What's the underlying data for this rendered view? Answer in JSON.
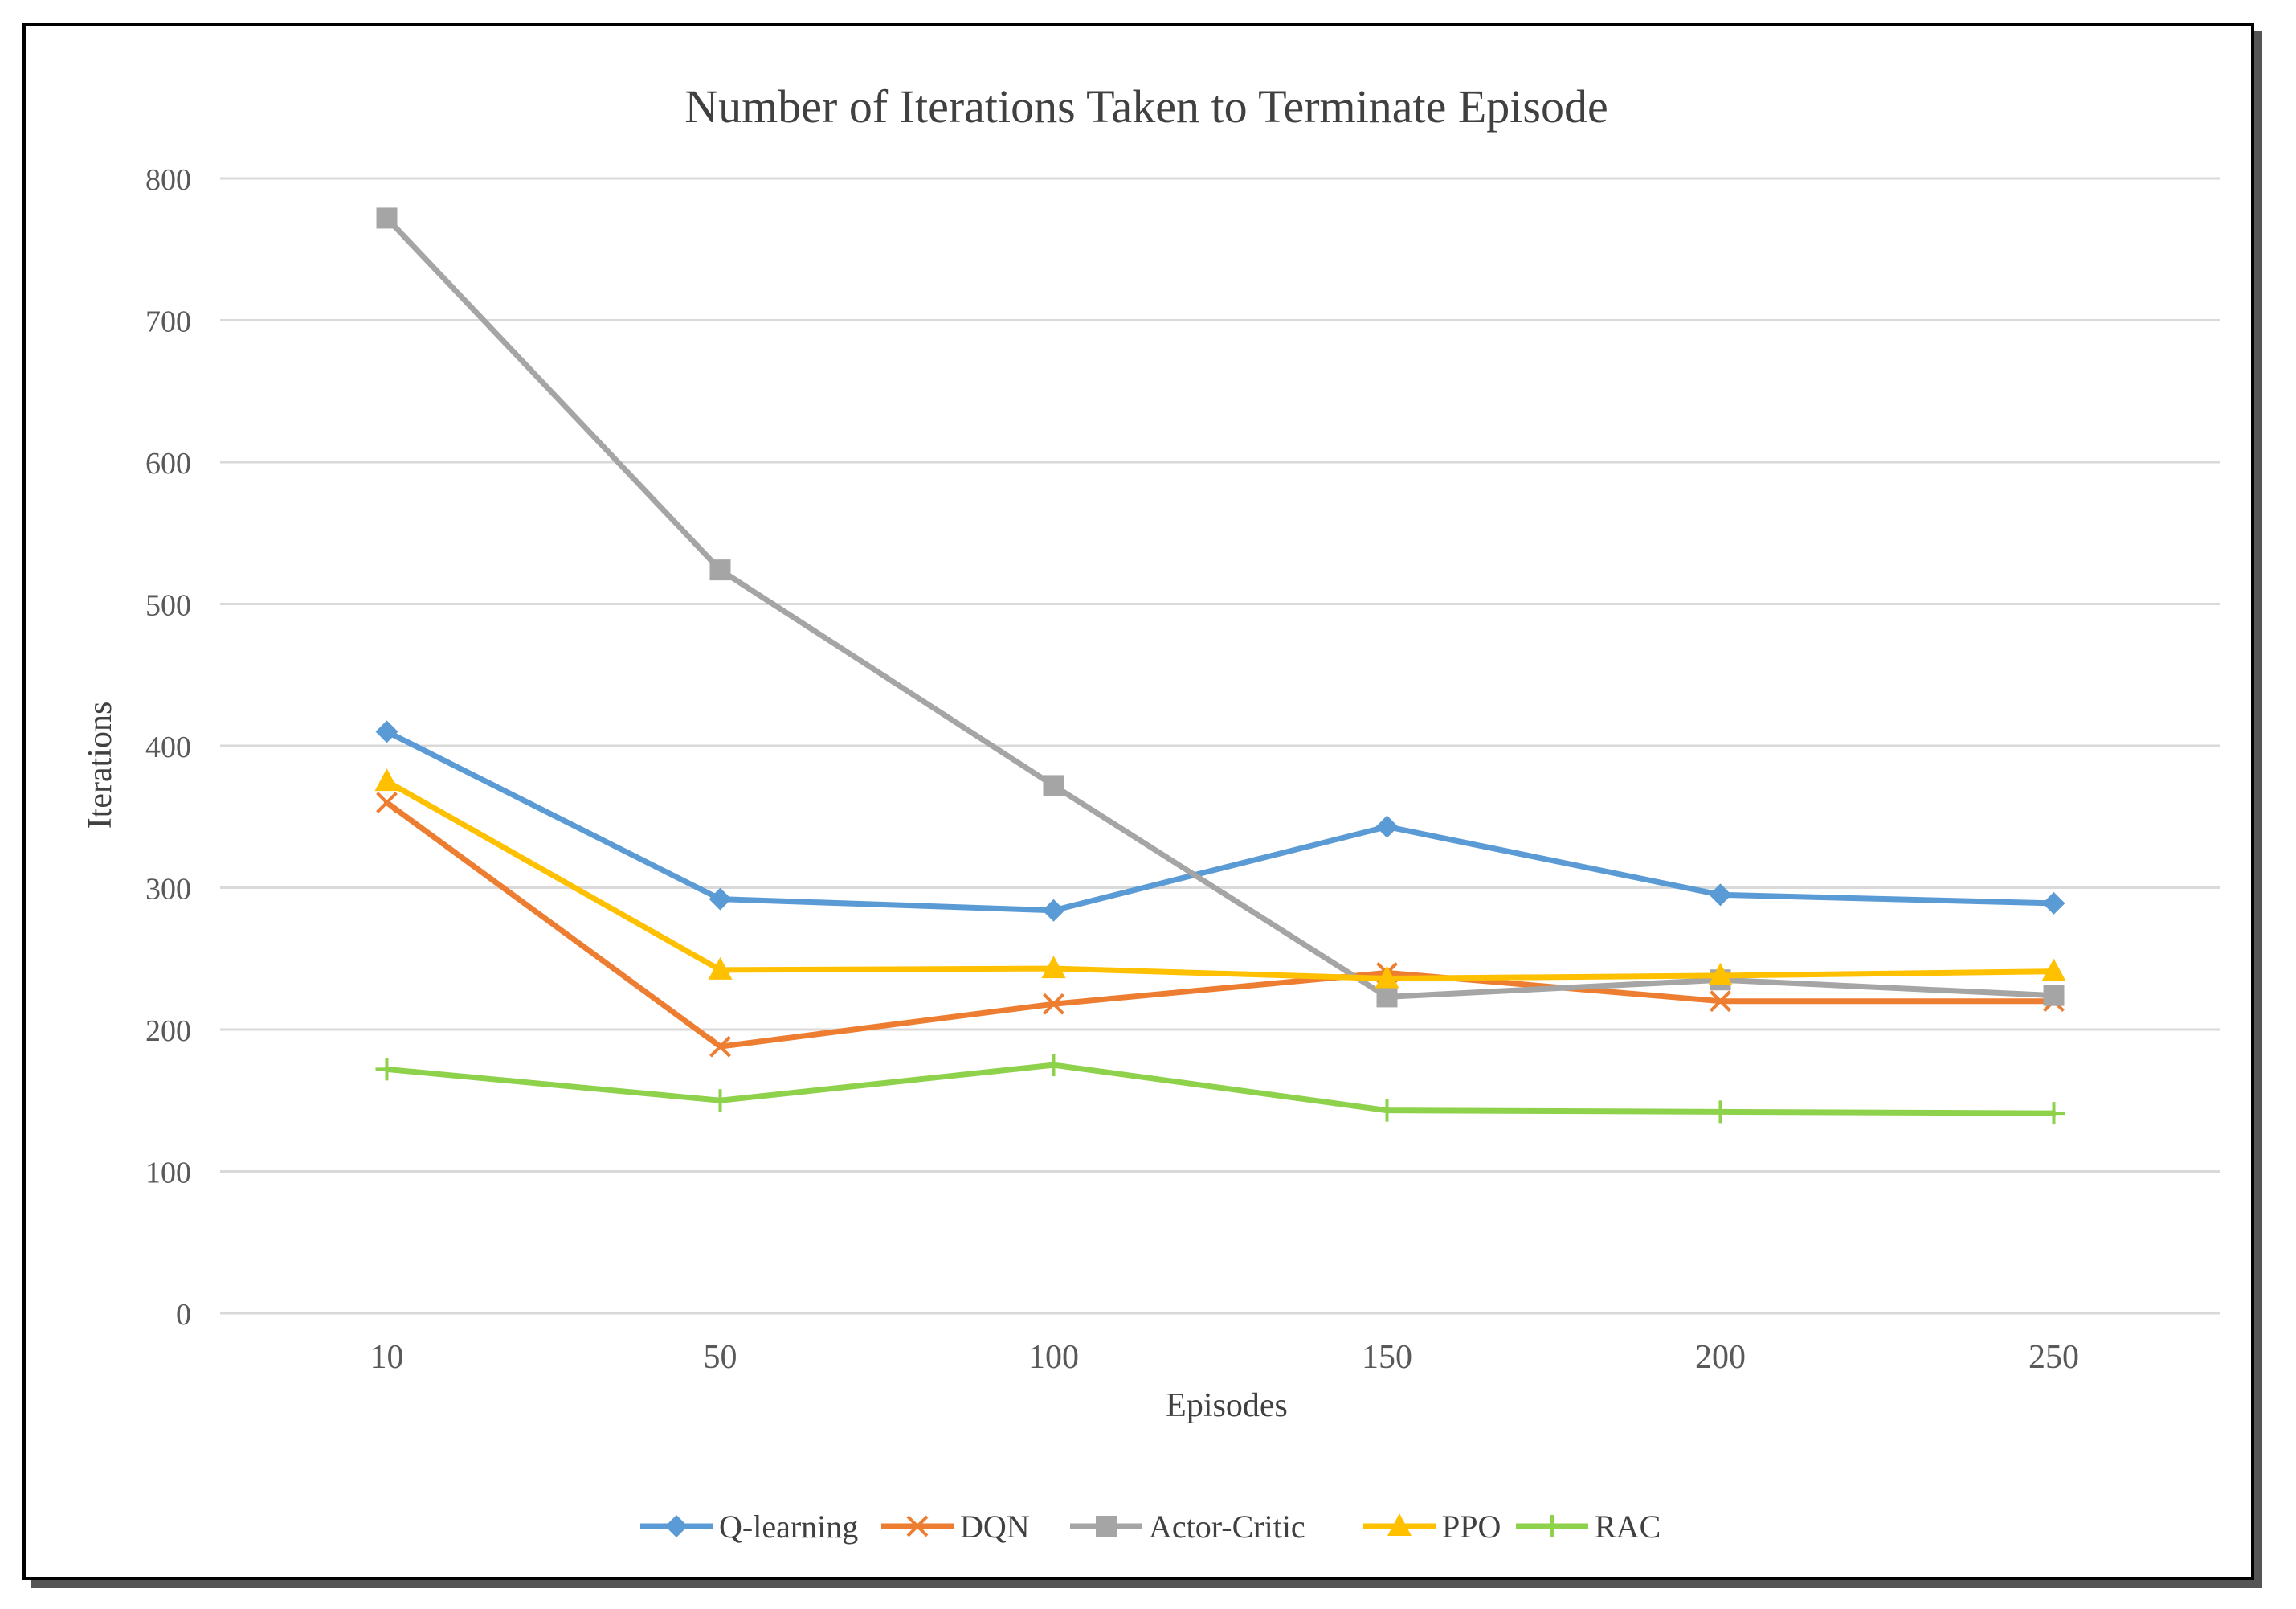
{
  "chart_data": {
    "type": "line",
    "title": "Number of Iterations Taken to Terminate Episode",
    "xlabel": "Episodes",
    "ylabel": "Iterations",
    "categories": [
      "10",
      "50",
      "100",
      "150",
      "200",
      "250"
    ],
    "ylim": [
      0,
      800
    ],
    "yticks": [
      0,
      100,
      200,
      300,
      400,
      500,
      600,
      700,
      800
    ],
    "grid": true,
    "legend_position": "bottom",
    "series": [
      {
        "name": "Q-learning",
        "color": "#5b9bd5",
        "marker": "diamond",
        "values": [
          410,
          292,
          284,
          343,
          295,
          289
        ]
      },
      {
        "name": "DQN",
        "color": "#ed7d31",
        "marker": "x",
        "values": [
          360,
          188,
          218,
          240,
          220,
          220
        ]
      },
      {
        "name": "Actor-Critic",
        "color": "#a5a5a5",
        "marker": "square",
        "values": [
          772,
          524,
          372,
          223,
          235,
          224
        ]
      },
      {
        "name": "PPO",
        "color": "#ffc000",
        "marker": "triangle",
        "values": [
          375,
          242,
          243,
          236,
          238,
          241
        ]
      },
      {
        "name": "RAC",
        "color": "#8ed14b",
        "marker": "plus",
        "values": [
          172,
          150,
          175,
          143,
          142,
          141
        ]
      }
    ]
  }
}
